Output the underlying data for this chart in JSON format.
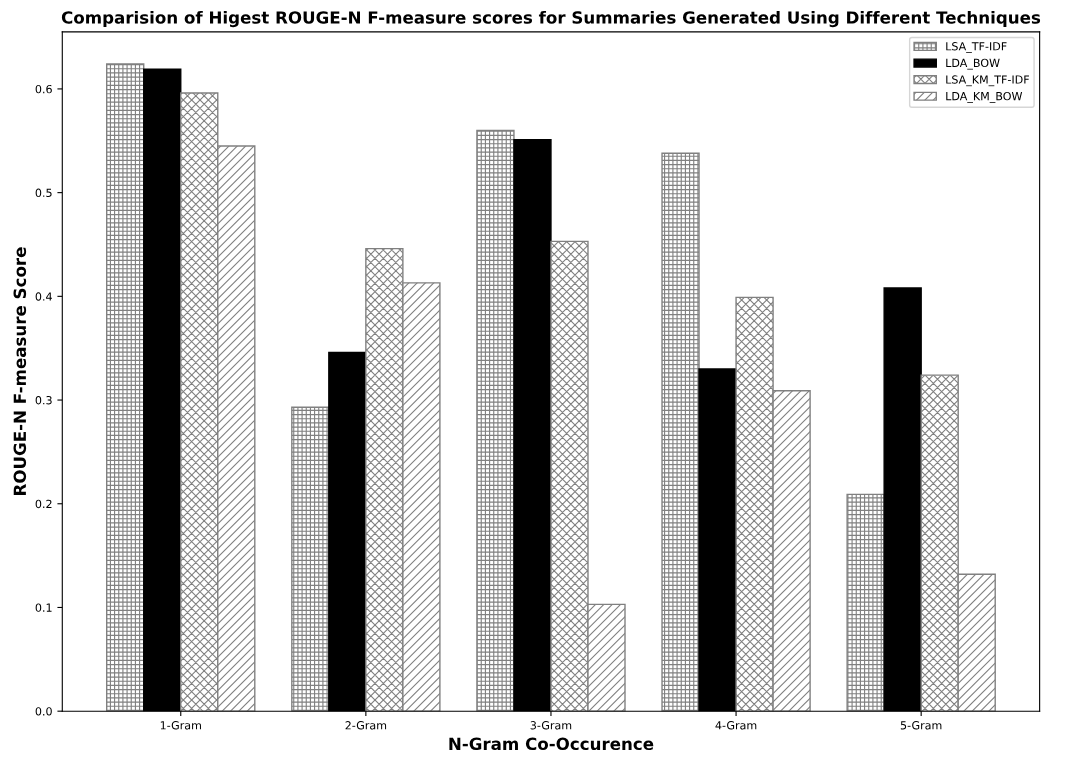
{
  "chart_data": {
    "type": "bar",
    "title": "Comparision of Higest ROUGE-N F-measure scores for Summaries Generated Using Different Techniques",
    "xlabel": "N-Gram Co-Occurence",
    "ylabel": "ROUGE-N F-measure Score",
    "categories": [
      "1-Gram",
      "2-Gram",
      "3-Gram",
      "4-Gram",
      "5-Gram"
    ],
    "series": [
      {
        "name": "LSA_TF-IDF",
        "color": "#808080",
        "values": [
          0.624,
          0.293,
          0.56,
          0.538,
          0.209
        ]
      },
      {
        "name": "LDA_BOW",
        "color": "#000000",
        "values": [
          0.619,
          0.346,
          0.551,
          0.33,
          0.408
        ]
      },
      {
        "name": "LSA_KM_TF-IDF",
        "color": "#808080",
        "values": [
          0.596,
          0.446,
          0.453,
          0.399,
          0.324
        ]
      },
      {
        "name": "LDA_KM_BOW",
        "color": "#808080",
        "values": [
          0.545,
          0.413,
          0.103,
          0.309,
          0.132
        ]
      }
    ],
    "ylim": [
      0,
      0.655
    ],
    "yticks": [
      {
        "value": 0,
        "label": "0.0"
      },
      0.1,
      0.2,
      0.3,
      0.4,
      0.5,
      0.6
    ],
    "legend": "top right",
    "grid": false
  }
}
